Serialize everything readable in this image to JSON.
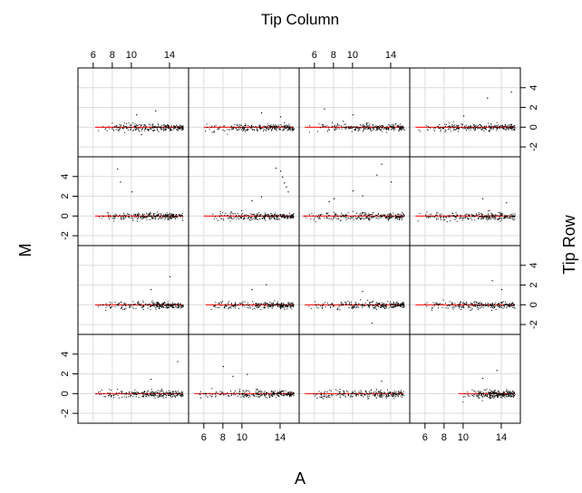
{
  "chart_data": {
    "type": "scatter",
    "title": "Tip Column",
    "xlabel": "A",
    "ylabel": "M",
    "right_label": "Tip Row",
    "layout": {
      "rows": 4,
      "cols": 4
    },
    "xlim": [
      4.4,
      16.0
    ],
    "ylim": [
      -3.0,
      6.0
    ],
    "x_ticks": [
      6,
      8,
      10,
      14
    ],
    "x_tick_labels": [
      "6",
      "8",
      "10",
      "14"
    ],
    "y_ticks": [
      -2,
      0,
      2,
      4
    ],
    "y_tick_labels": [
      "-2",
      "0",
      "2",
      "4"
    ],
    "grid": true,
    "fit_line": {
      "y": 0,
      "color": "#ff0000"
    },
    "point_color": "#000000",
    "panels": [
      {
        "row": 1,
        "col": 1,
        "x_range": [
          6.2,
          15.4
        ],
        "outliers": [
          [
            10.5,
            1.3
          ],
          [
            12.5,
            1.7
          ],
          [
            11.0,
            -0.7
          ]
        ]
      },
      {
        "row": 1,
        "col": 2,
        "x_range": [
          6.0,
          15.4
        ],
        "outliers": [
          [
            12.0,
            1.5
          ],
          [
            14.0,
            1.1
          ]
        ]
      },
      {
        "row": 1,
        "col": 3,
        "x_range": [
          5.0,
          15.4
        ],
        "outliers": [
          [
            7.0,
            1.9
          ],
          [
            10.0,
            1.3
          ]
        ]
      },
      {
        "row": 1,
        "col": 4,
        "x_range": [
          5.0,
          15.4
        ],
        "outliers": [
          [
            12.5,
            3.0
          ],
          [
            15.0,
            3.6
          ],
          [
            10.0,
            1.2
          ]
        ]
      },
      {
        "row": 2,
        "col": 1,
        "x_range": [
          6.2,
          15.4
        ],
        "outliers": [
          [
            8.5,
            4.8
          ],
          [
            8.8,
            3.5
          ],
          [
            10.0,
            2.5
          ]
        ]
      },
      {
        "row": 2,
        "col": 2,
        "x_range": [
          6.0,
          15.4
        ],
        "outliers": [
          [
            13.5,
            4.9
          ],
          [
            14.0,
            4.6
          ],
          [
            14.2,
            4.0
          ],
          [
            14.4,
            3.4
          ],
          [
            14.6,
            3.0
          ],
          [
            14.8,
            2.5
          ],
          [
            12.0,
            2.0
          ],
          [
            11.0,
            1.6
          ]
        ]
      },
      {
        "row": 2,
        "col": 3,
        "x_range": [
          4.8,
          15.4
        ],
        "outliers": [
          [
            13.0,
            5.3
          ],
          [
            14.0,
            3.5
          ],
          [
            12.5,
            4.2
          ],
          [
            10.0,
            2.6
          ],
          [
            11.0,
            2.1
          ],
          [
            8.0,
            1.8
          ],
          [
            7.5,
            1.5
          ]
        ]
      },
      {
        "row": 2,
        "col": 4,
        "x_range": [
          5.0,
          15.4
        ],
        "outliers": [
          [
            12.0,
            1.8
          ],
          [
            14.5,
            1.4
          ]
        ]
      },
      {
        "row": 3,
        "col": 1,
        "x_range": [
          6.2,
          15.4
        ],
        "outliers": [
          [
            14.0,
            2.9
          ],
          [
            12.0,
            1.6
          ]
        ]
      },
      {
        "row": 3,
        "col": 2,
        "x_range": [
          6.2,
          15.4
        ],
        "outliers": [
          [
            11.0,
            1.6
          ],
          [
            12.5,
            2.1
          ]
        ]
      },
      {
        "row": 3,
        "col": 3,
        "x_range": [
          5.0,
          15.4
        ],
        "outliers": [
          [
            12.0,
            -1.8
          ],
          [
            11.0,
            1.4
          ]
        ]
      },
      {
        "row": 3,
        "col": 4,
        "x_range": [
          5.0,
          15.4
        ],
        "outliers": [
          [
            13.0,
            2.5
          ],
          [
            14.0,
            1.6
          ]
        ]
      },
      {
        "row": 4,
        "col": 1,
        "x_range": [
          6.2,
          15.4
        ],
        "outliers": [
          [
            14.8,
            3.3
          ],
          [
            12.0,
            1.5
          ]
        ]
      },
      {
        "row": 4,
        "col": 2,
        "x_range": [
          5.0,
          15.4
        ],
        "outliers": [
          [
            8.0,
            2.8
          ],
          [
            10.5,
            2.0
          ],
          [
            9.0,
            1.8
          ]
        ]
      },
      {
        "row": 4,
        "col": 3,
        "x_range": [
          5.0,
          15.4
        ],
        "outliers": [
          [
            13.0,
            1.3
          ]
        ]
      },
      {
        "row": 4,
        "col": 4,
        "x_range": [
          9.5,
          15.4
        ],
        "outliers": [
          [
            13.5,
            2.4
          ],
          [
            12.0,
            1.6
          ]
        ]
      }
    ]
  }
}
